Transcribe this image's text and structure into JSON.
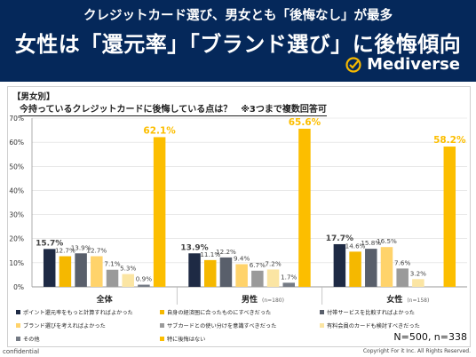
{
  "header": {
    "subtitle": "クレジットカード選び、男女とも「後悔なし」が最多",
    "title": "女性は「還元率」「ブランド選び」に後悔傾向",
    "brand": "Mediverse"
  },
  "colors": {
    "header_bg": "#05285a",
    "brand_logo": "#f5b800"
  },
  "segment_label": "【男女別】",
  "question": "今持っているクレジットカードに後悔している点は？　※3つまで複数回答可",
  "sample_size": "N=500, n=338",
  "footer": {
    "left": "confidential",
    "right": "Copyright For it Inc. All Rights Reserved."
  },
  "chart_data": {
    "type": "bar",
    "ylim": [
      0,
      70
    ],
    "yticks": [
      "0%",
      "10%",
      "20%",
      "30%",
      "40%",
      "50%",
      "60%",
      "70%"
    ],
    "categories": [
      "全体",
      "男性",
      "女性"
    ],
    "category_n": [
      "",
      "(n=180)",
      "(n=158)"
    ],
    "series": [
      {
        "name": "ポイント還元率をもっと計算すればよかった",
        "color": "#1e2a44",
        "values": [
          15.7,
          13.9,
          17.7
        ]
      },
      {
        "name": "自身の経済圏に合ったものにすべきだった",
        "color": "#f5b800",
        "values": [
          12.7,
          11.1,
          14.6
        ]
      },
      {
        "name": "付帯サービスを比較すればよかった",
        "color": "#595f6b",
        "values": [
          13.9,
          12.2,
          15.8
        ]
      },
      {
        "name": "ブランド選びを考えればよかった",
        "color": "#ffd36b",
        "values": [
          12.7,
          9.4,
          16.5
        ]
      },
      {
        "name": "サブカードとの使い分けを意識すべきだった",
        "color": "#9a9a9a",
        "values": [
          7.1,
          6.7,
          7.6
        ]
      },
      {
        "name": "有料会員のカードも検討すべきだった",
        "color": "#fbe5a3",
        "values": [
          5.3,
          7.2,
          3.2
        ]
      },
      {
        "name": "その他",
        "color": "#757b85",
        "values": [
          0.9,
          1.7,
          0
        ]
      },
      {
        "name": "特に後悔はない",
        "color": "#fcbe00",
        "values": [
          62.1,
          65.6,
          58.2
        ]
      }
    ],
    "value_labels": [
      [
        "15.7%",
        "12.7%",
        "13.9%",
        "12.7%",
        "7.1%",
        "5.3%",
        "0.9%",
        "62.1%"
      ],
      [
        "13.9%",
        "11.1%",
        "12.2%",
        "9.4%",
        "6.7%",
        "7.2%",
        "1.7%",
        "65.6%"
      ],
      [
        "17.7%",
        "14.6%",
        "15.8%",
        "16.5%",
        "7.6%",
        "3.2%",
        "",
        "58.2%"
      ]
    ]
  }
}
